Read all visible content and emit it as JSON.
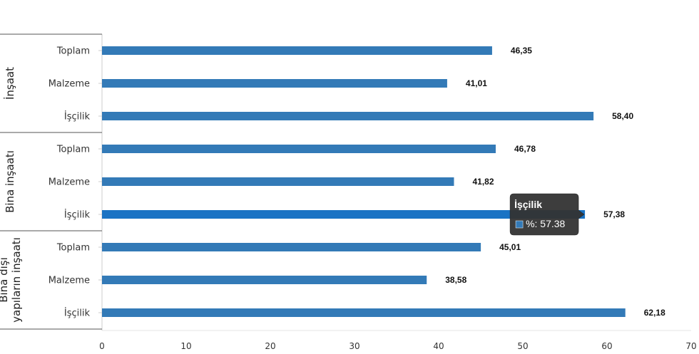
{
  "chart_data": {
    "type": "bar",
    "orientation": "horizontal",
    "title": "",
    "xlabel": "",
    "ylabel": "",
    "xlim": [
      0,
      70
    ],
    "xticks": [
      0,
      10,
      20,
      30,
      40,
      50,
      60,
      70
    ],
    "groups": [
      {
        "label": "İnşaat",
        "categories": [
          "Toplam",
          "Malzeme",
          "İşçilik"
        ],
        "values": [
          46.35,
          41.01,
          58.4
        ],
        "value_labels": [
          "46,35",
          "41,01",
          "58,40"
        ]
      },
      {
        "label": "Bina inşaatı",
        "categories": [
          "Toplam",
          "Malzeme",
          "İşçilik"
        ],
        "values": [
          46.78,
          41.82,
          57.38
        ],
        "value_labels": [
          "46,78",
          "41,82",
          "57,38"
        ]
      },
      {
        "label_lines": [
          "Bina dışı",
          "yapıların inşaatı"
        ],
        "categories": [
          "Toplam",
          "Malzeme",
          "İşçilik"
        ],
        "values": [
          45.01,
          38.58,
          62.18
        ],
        "value_labels": [
          "45,01",
          "38,58",
          "62,18"
        ]
      }
    ],
    "grid": false,
    "legend": "none",
    "colors": {
      "bar": "#337ab7",
      "bar_highlight": "#1a73c4",
      "tooltip_bg": "#333333"
    }
  },
  "tooltip": {
    "title": "İşçilik",
    "value_text": "%: 57.38",
    "group_index": 1,
    "bar_index": 2,
    "swatch_color": "#337ab7"
  }
}
